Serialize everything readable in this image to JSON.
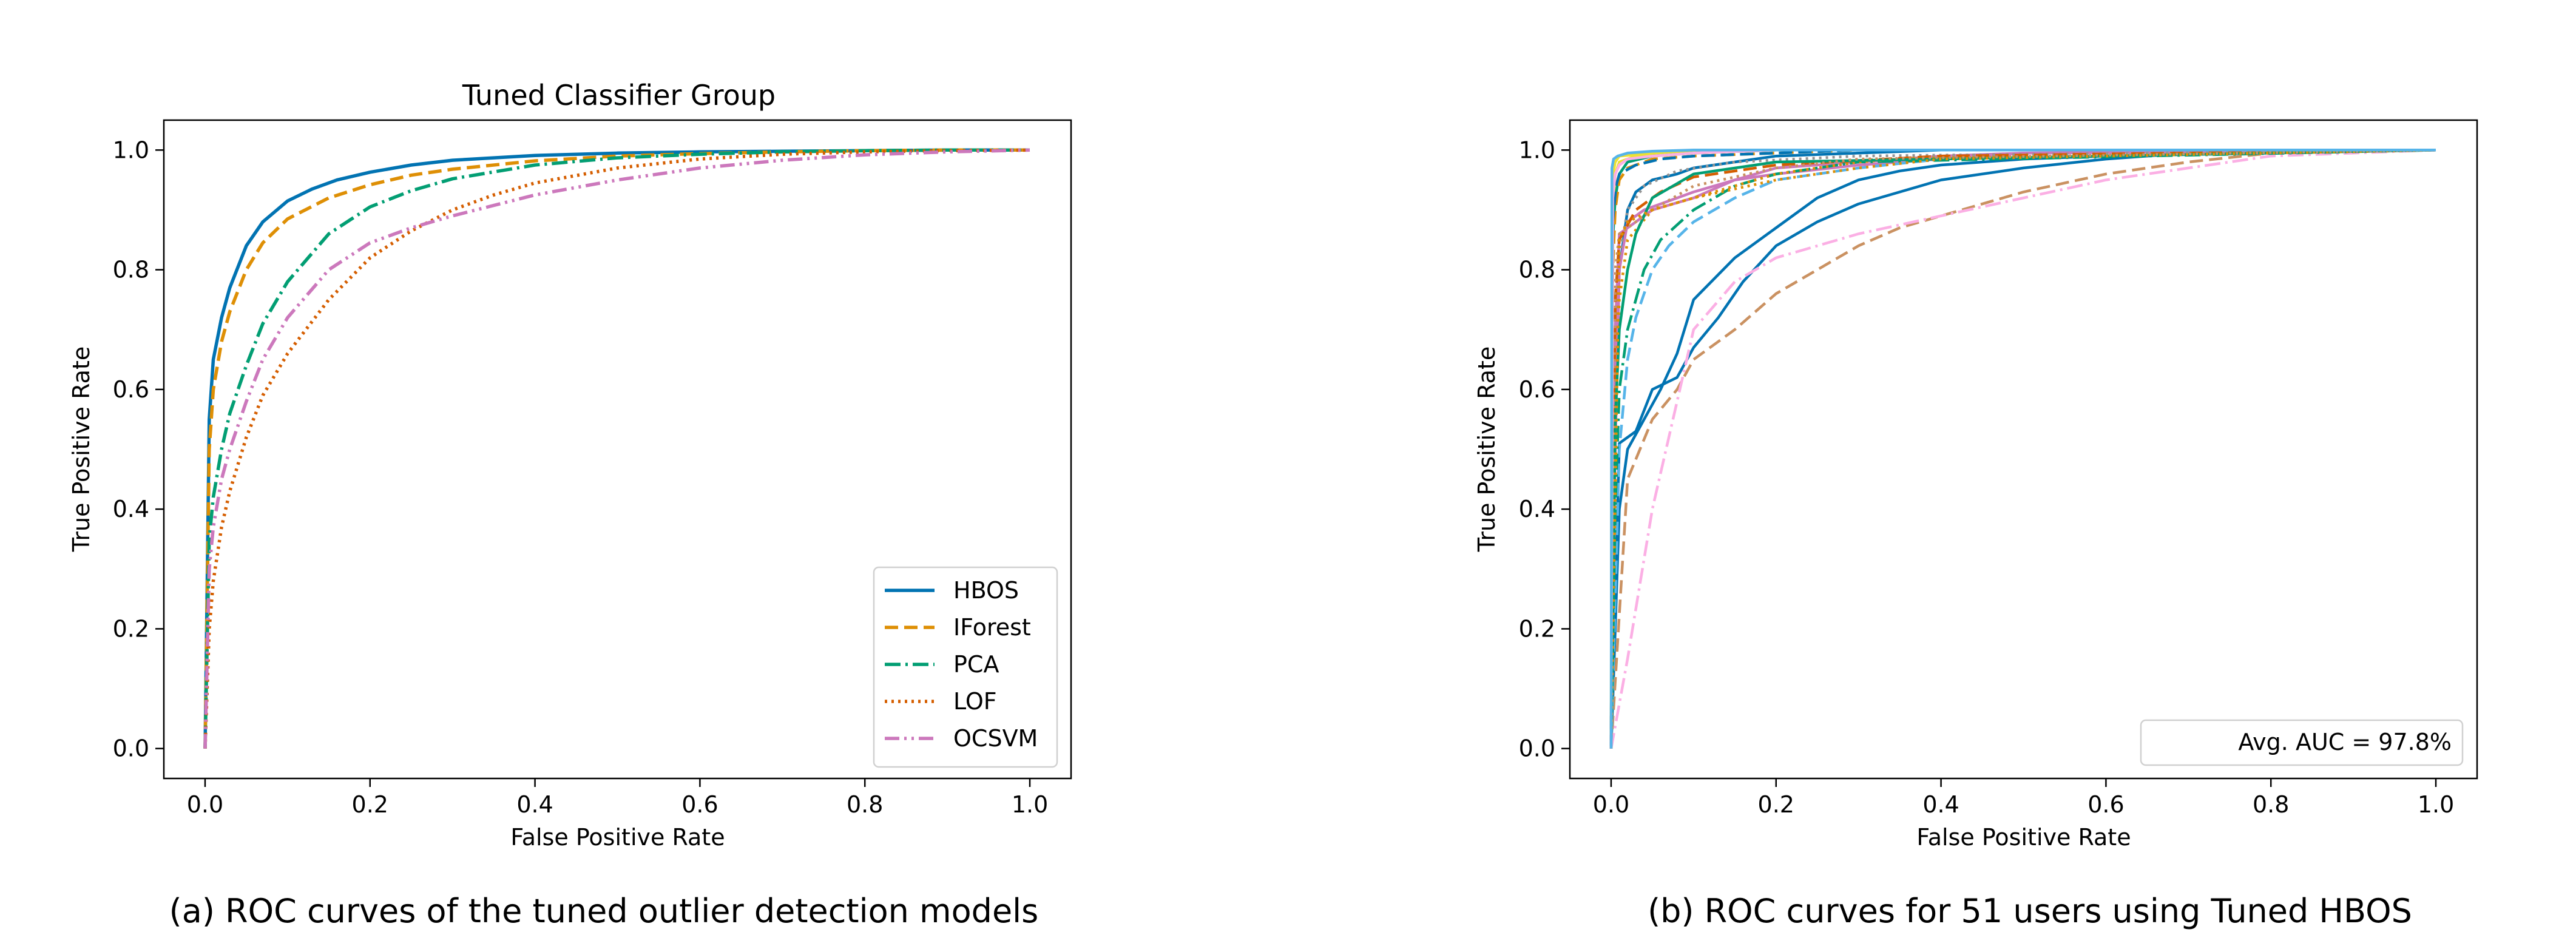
{
  "captions": {
    "a": "(a) ROC curves of the tuned outlier detection models",
    "b": "(b) ROC curves for 51 users using Tuned HBOS"
  },
  "chart_data": [
    {
      "type": "line",
      "title": "Tuned Classifier Group",
      "xlabel": "False Positive Rate",
      "ylabel": "True Positive Rate",
      "xlim": [
        -0.05,
        1.05
      ],
      "ylim": [
        -0.05,
        1.05
      ],
      "xticks": [
        "0.0",
        "0.2",
        "0.4",
        "0.6",
        "0.8",
        "1.0"
      ],
      "yticks": [
        "0.0",
        "0.2",
        "0.4",
        "0.6",
        "0.8",
        "1.0"
      ],
      "grid": false,
      "legend_position": "lower-right",
      "series": [
        {
          "name": "HBOS",
          "color": "#0173b2",
          "style": "solid",
          "x": [
            0,
            0.005,
            0.01,
            0.02,
            0.03,
            0.05,
            0.07,
            0.1,
            0.13,
            0.16,
            0.2,
            0.25,
            0.3,
            0.4,
            0.5,
            0.6,
            0.7,
            0.8,
            0.9,
            1.0
          ],
          "y": [
            0,
            0.55,
            0.65,
            0.72,
            0.77,
            0.84,
            0.88,
            0.915,
            0.935,
            0.95,
            0.963,
            0.975,
            0.983,
            0.991,
            0.995,
            0.997,
            0.998,
            0.999,
            1.0,
            1.0
          ]
        },
        {
          "name": "IForest",
          "color": "#de8f05",
          "style": "dashed",
          "x": [
            0,
            0.005,
            0.01,
            0.02,
            0.03,
            0.05,
            0.07,
            0.1,
            0.15,
            0.2,
            0.25,
            0.3,
            0.4,
            0.5,
            0.6,
            0.7,
            0.8,
            0.9,
            1.0
          ],
          "y": [
            0,
            0.5,
            0.6,
            0.68,
            0.73,
            0.8,
            0.845,
            0.885,
            0.92,
            0.942,
            0.958,
            0.968,
            0.982,
            0.99,
            0.994,
            0.997,
            0.999,
            1.0,
            1.0
          ]
        },
        {
          "name": "PCA",
          "color": "#029e73",
          "style": "dashdot",
          "x": [
            0,
            0.005,
            0.01,
            0.02,
            0.03,
            0.05,
            0.07,
            0.1,
            0.15,
            0.2,
            0.25,
            0.3,
            0.4,
            0.5,
            0.6,
            0.7,
            0.8,
            0.9,
            1.0
          ],
          "y": [
            0,
            0.35,
            0.42,
            0.5,
            0.56,
            0.64,
            0.71,
            0.78,
            0.86,
            0.905,
            0.932,
            0.952,
            0.975,
            0.987,
            0.993,
            0.997,
            0.999,
            1.0,
            1.0
          ]
        },
        {
          "name": "LOF",
          "color": "#d55e00",
          "style": "dotted",
          "x": [
            0,
            0.005,
            0.01,
            0.02,
            0.03,
            0.05,
            0.07,
            0.1,
            0.15,
            0.2,
            0.25,
            0.3,
            0.35,
            0.4,
            0.5,
            0.6,
            0.7,
            0.8,
            0.9,
            1.0
          ],
          "y": [
            0,
            0.2,
            0.28,
            0.37,
            0.43,
            0.52,
            0.59,
            0.66,
            0.75,
            0.82,
            0.865,
            0.9,
            0.925,
            0.945,
            0.97,
            0.985,
            0.993,
            0.997,
            0.999,
            1.0
          ]
        },
        {
          "name": "OCSVM",
          "color": "#cc78bc",
          "style": "dashdotdot",
          "x": [
            0,
            0.005,
            0.01,
            0.02,
            0.03,
            0.05,
            0.07,
            0.1,
            0.15,
            0.2,
            0.25,
            0.3,
            0.4,
            0.5,
            0.6,
            0.7,
            0.8,
            0.9,
            1.0
          ],
          "y": [
            0,
            0.3,
            0.37,
            0.45,
            0.5,
            0.58,
            0.65,
            0.72,
            0.8,
            0.845,
            0.87,
            0.89,
            0.925,
            0.95,
            0.97,
            0.983,
            0.992,
            0.997,
            1.0
          ]
        }
      ]
    },
    {
      "type": "line",
      "title": "",
      "xlabel": "False Positive Rate",
      "ylabel": "True Positive Rate",
      "xlim": [
        -0.05,
        1.05
      ],
      "ylim": [
        -0.05,
        1.05
      ],
      "xticks": [
        "0.0",
        "0.2",
        "0.4",
        "0.6",
        "0.8",
        "1.0"
      ],
      "yticks": [
        "0.0",
        "0.2",
        "0.4",
        "0.6",
        "0.8",
        "1.0"
      ],
      "grid": false,
      "legend_position": "lower-right",
      "legend_entries": [
        "Avg. AUC = 97.8%"
      ],
      "palette": [
        "#0173b2",
        "#de8f05",
        "#029e73",
        "#d55e00",
        "#cc78bc",
        "#ca9161",
        "#fbafe4",
        "#949494",
        "#ece133",
        "#56b4e9"
      ],
      "series": [
        {
          "color": "#0173b2",
          "style": "solid",
          "x": [
            0,
            0.01,
            0.03,
            0.05,
            0.08,
            0.1,
            0.13,
            0.16,
            0.2,
            0.25,
            0.3,
            0.4,
            0.5,
            0.6,
            0.7,
            0.8,
            1.0
          ],
          "y": [
            0,
            0.51,
            0.53,
            0.6,
            0.62,
            0.67,
            0.72,
            0.78,
            0.84,
            0.88,
            0.91,
            0.95,
            0.97,
            0.985,
            0.995,
            1.0,
            1.0
          ]
        },
        {
          "color": "#0173b2",
          "style": "solid",
          "x": [
            0,
            0.01,
            0.02,
            0.04,
            0.06,
            0.08,
            0.1,
            0.15,
            0.2,
            0.25,
            0.3,
            0.35,
            0.4,
            0.5,
            0.6,
            0.8,
            1.0
          ],
          "y": [
            0,
            0.4,
            0.5,
            0.55,
            0.6,
            0.66,
            0.75,
            0.82,
            0.87,
            0.92,
            0.95,
            0.965,
            0.975,
            0.985,
            0.99,
            0.995,
            1.0
          ]
        },
        {
          "color": "#ca9161",
          "style": "dashed",
          "x": [
            0,
            0.02,
            0.05,
            0.08,
            0.1,
            0.15,
            0.2,
            0.25,
            0.3,
            0.35,
            0.4,
            0.5,
            0.6,
            0.7,
            0.8,
            1.0
          ],
          "y": [
            0,
            0.45,
            0.55,
            0.6,
            0.65,
            0.7,
            0.76,
            0.8,
            0.84,
            0.87,
            0.89,
            0.93,
            0.96,
            0.98,
            0.995,
            1.0
          ]
        },
        {
          "color": "#fbafe4",
          "style": "dashdot",
          "x": [
            0,
            0.02,
            0.05,
            0.1,
            0.15,
            0.2,
            0.3,
            0.4,
            0.5,
            0.6,
            0.7,
            0.8,
            1.0
          ],
          "y": [
            0,
            0.15,
            0.4,
            0.7,
            0.78,
            0.82,
            0.86,
            0.89,
            0.92,
            0.95,
            0.97,
            0.99,
            1.0
          ]
        },
        {
          "color": "#0173b2",
          "style": "solid",
          "x": [
            0,
            0.005,
            0.01,
            0.02,
            0.03,
            0.05,
            0.08,
            0.1,
            0.15,
            0.2,
            0.3,
            0.4,
            1.0
          ],
          "y": [
            0,
            0.6,
            0.8,
            0.9,
            0.93,
            0.95,
            0.96,
            0.97,
            0.98,
            0.99,
            0.995,
            1.0,
            1.0
          ]
        },
        {
          "color": "#cc78bc",
          "style": "solid",
          "x": [
            0,
            0.005,
            0.01,
            0.02,
            0.04,
            0.06,
            0.1,
            0.15,
            0.2,
            0.3,
            0.4,
            0.5,
            1.0
          ],
          "y": [
            0,
            0.5,
            0.8,
            0.88,
            0.9,
            0.91,
            0.93,
            0.95,
            0.96,
            0.975,
            0.985,
            0.995,
            1.0
          ]
        },
        {
          "color": "#cc78bc",
          "style": "solid",
          "x": [
            0,
            0.005,
            0.01,
            0.03,
            0.05,
            0.1,
            0.15,
            0.2,
            0.3,
            0.4,
            0.5,
            1.0
          ],
          "y": [
            0,
            0.7,
            0.86,
            0.88,
            0.9,
            0.92,
            0.95,
            0.97,
            0.98,
            0.99,
            0.995,
            1.0
          ]
        },
        {
          "color": "#56b4e9",
          "style": "dashed",
          "x": [
            0,
            0.01,
            0.02,
            0.03,
            0.05,
            0.07,
            0.1,
            0.15,
            0.2,
            0.3,
            0.4,
            1.0
          ],
          "y": [
            0,
            0.5,
            0.65,
            0.72,
            0.8,
            0.84,
            0.88,
            0.92,
            0.95,
            0.97,
            0.985,
            1.0
          ]
        },
        {
          "color": "#029e73",
          "style": "dashdot",
          "x": [
            0,
            0.005,
            0.01,
            0.02,
            0.04,
            0.06,
            0.1,
            0.15,
            0.2,
            0.3,
            1.0
          ],
          "y": [
            0,
            0.4,
            0.6,
            0.7,
            0.8,
            0.85,
            0.9,
            0.94,
            0.96,
            0.98,
            1.0
          ]
        },
        {
          "color": "#de8f05",
          "style": "dotted",
          "x": [
            0,
            0.005,
            0.01,
            0.02,
            0.05,
            0.1,
            0.15,
            0.2,
            0.3,
            0.4,
            1.0
          ],
          "y": [
            0,
            0.6,
            0.75,
            0.85,
            0.9,
            0.92,
            0.94,
            0.96,
            0.98,
            0.99,
            1.0
          ]
        },
        {
          "color": "#ece133",
          "style": "solid",
          "x": [
            0,
            0.001,
            0.005,
            0.01,
            0.05,
            0.1,
            0.2,
            1.0
          ],
          "y": [
            0,
            0.95,
            0.98,
            0.99,
            0.995,
            0.998,
            1.0,
            1.0
          ]
        },
        {
          "color": "#ece133",
          "style": "solid",
          "x": [
            0,
            0.002,
            0.005,
            0.01,
            0.03,
            0.1,
            0.2,
            1.0
          ],
          "y": [
            0,
            0.9,
            0.96,
            0.98,
            0.99,
            0.995,
            1.0,
            1.0
          ]
        },
        {
          "color": "#029e73",
          "style": "solid",
          "x": [
            0,
            0.002,
            0.005,
            0.01,
            0.02,
            0.05,
            0.1,
            0.2,
            1.0
          ],
          "y": [
            0,
            0.85,
            0.92,
            0.96,
            0.98,
            0.99,
            0.995,
            1.0,
            1.0
          ]
        },
        {
          "color": "#de8f05",
          "style": "dashed",
          "x": [
            0,
            0.002,
            0.005,
            0.01,
            0.02,
            0.05,
            0.1,
            0.3,
            1.0
          ],
          "y": [
            0,
            0.8,
            0.9,
            0.95,
            0.97,
            0.985,
            0.99,
            1.0,
            1.0
          ]
        },
        {
          "color": "#949494",
          "style": "dotted",
          "x": [
            0,
            0.005,
            0.01,
            0.02,
            0.04,
            0.08,
            0.15,
            0.3,
            1.0
          ],
          "y": [
            0,
            0.7,
            0.82,
            0.9,
            0.94,
            0.965,
            0.98,
            0.99,
            1.0
          ]
        },
        {
          "color": "#d55e00",
          "style": "dashed",
          "x": [
            0,
            0.005,
            0.01,
            0.03,
            0.06,
            0.1,
            0.2,
            0.4,
            1.0
          ],
          "y": [
            0,
            0.75,
            0.85,
            0.9,
            0.93,
            0.955,
            0.975,
            0.99,
            1.0
          ]
        },
        {
          "color": "#0173b2",
          "style": "dashed",
          "x": [
            0,
            0.002,
            0.006,
            0.01,
            0.03,
            0.06,
            0.1,
            0.3,
            1.0
          ],
          "y": [
            0,
            0.88,
            0.94,
            0.96,
            0.975,
            0.985,
            0.99,
            1.0,
            1.0
          ]
        },
        {
          "color": "#029e73",
          "style": "solid",
          "x": [
            0,
            0.005,
            0.01,
            0.02,
            0.03,
            0.05,
            0.1,
            0.2,
            1.0
          ],
          "y": [
            0,
            0.55,
            0.7,
            0.8,
            0.86,
            0.92,
            0.96,
            0.98,
            1.0
          ]
        },
        {
          "color": "#ca9161",
          "style": "dotted",
          "x": [
            0,
            0.005,
            0.01,
            0.03,
            0.05,
            0.1,
            0.2,
            0.3,
            1.0
          ],
          "y": [
            0,
            0.8,
            0.86,
            0.88,
            0.9,
            0.94,
            0.97,
            0.985,
            1.0
          ]
        },
        {
          "color": "#de8f05",
          "style": "dotted",
          "x": [
            0,
            0.01,
            0.02,
            0.05,
            0.1,
            0.15,
            0.2,
            0.3,
            0.4,
            1.0
          ],
          "y": [
            0,
            0.85,
            0.88,
            0.9,
            0.92,
            0.935,
            0.95,
            0.97,
            0.985,
            1.0
          ]
        },
        {
          "color": "#fbafe4",
          "style": "solid",
          "x": [
            0,
            0.002,
            0.005,
            0.01,
            0.02,
            0.05,
            0.1,
            0.2,
            1.0
          ],
          "y": [
            0,
            0.92,
            0.96,
            0.975,
            0.985,
            0.99,
            0.995,
            1.0,
            1.0
          ]
        },
        {
          "color": "#56b4e9",
          "style": "solid",
          "x": [
            0,
            0.001,
            0.003,
            0.008,
            0.02,
            0.05,
            0.1,
            1.0
          ],
          "y": [
            0,
            0.97,
            0.985,
            0.99,
            0.995,
            0.998,
            1.0,
            1.0
          ]
        }
      ]
    }
  ]
}
